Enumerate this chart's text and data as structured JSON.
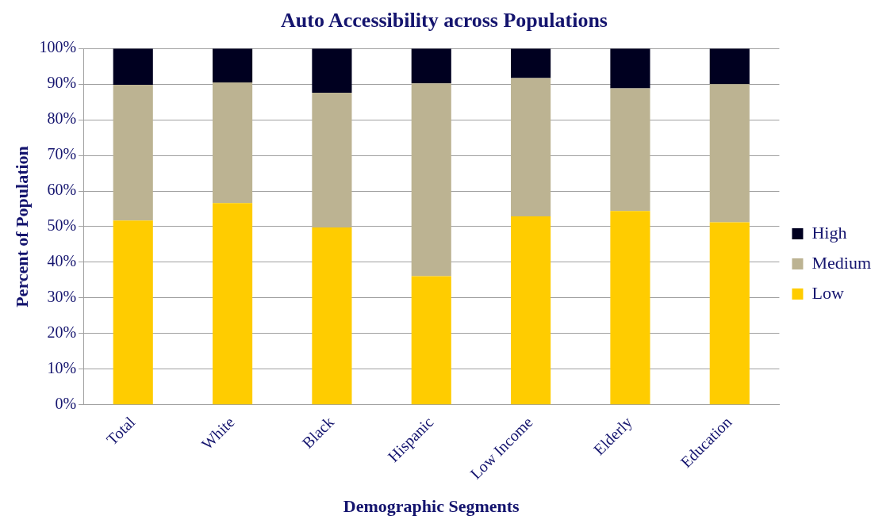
{
  "chart_data": {
    "type": "bar",
    "title": "Auto Accessibility across Populations",
    "xlabel": "Demographic Segments",
    "ylabel": "Percent of Population",
    "categories": [
      "Total",
      "White",
      "Black",
      "Hispanic",
      "Low Income",
      "Elderly",
      "Education"
    ],
    "stacked": true,
    "series": [
      {
        "name": "Low",
        "color": "#ffcc00",
        "values": [
          51.7,
          56.6,
          49.8,
          36.1,
          52.9,
          54.4,
          51.2
        ]
      },
      {
        "name": "Medium",
        "color": "#bcb392",
        "values": [
          38.1,
          33.9,
          37.8,
          54.1,
          38.8,
          34.4,
          38.8
        ]
      },
      {
        "name": "High",
        "color": "#000020",
        "values": [
          10.2,
          9.5,
          12.4,
          9.8,
          8.3,
          11.2,
          10.0
        ]
      }
    ],
    "ylim": [
      0,
      100
    ],
    "yticks": [
      {
        "value": 0,
        "label": "0%"
      },
      {
        "value": 10,
        "label": "10%"
      },
      {
        "value": 20,
        "label": "20%"
      },
      {
        "value": 30,
        "label": "30%"
      },
      {
        "value": 40,
        "label": "40%"
      },
      {
        "value": 50,
        "label": "50%"
      },
      {
        "value": 60,
        "label": "60%"
      },
      {
        "value": 70,
        "label": "70%"
      },
      {
        "value": 80,
        "label": "80%"
      },
      {
        "value": 90,
        "label": "90%"
      },
      {
        "value": 100,
        "label": "100%"
      }
    ],
    "grid": "y",
    "legend": "right"
  }
}
